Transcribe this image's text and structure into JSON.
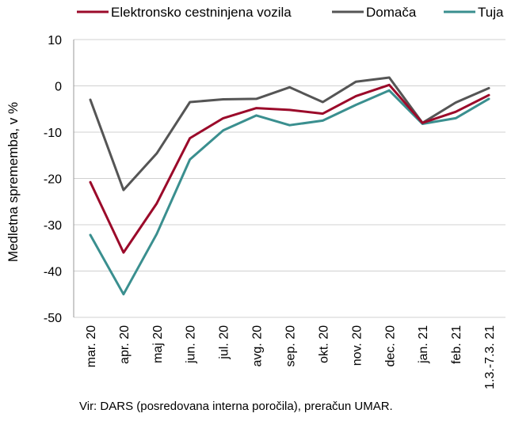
{
  "chart_data": {
    "type": "line",
    "categories": [
      "mar. 20",
      "apr. 20",
      "maj 20",
      "jun. 20",
      "jul. 20",
      "avg. 20",
      "sep. 20",
      "okt. 20",
      "nov. 20",
      "dec. 20",
      "jan. 21",
      "feb. 21",
      "1.3.-7.3. 21"
    ],
    "series": [
      {
        "name": "Elektronsko cestninjena vozila",
        "color": "#9b0a2a",
        "values": [
          -20.8,
          -36.0,
          -25.4,
          -11.3,
          -7.0,
          -4.8,
          -5.2,
          -6.0,
          -2.2,
          0.2,
          -8.0,
          -5.6,
          -2.0
        ]
      },
      {
        "name": "Domača",
        "color": "#555555",
        "values": [
          -3.0,
          -22.5,
          -14.6,
          -3.5,
          -2.9,
          -2.8,
          -0.3,
          -3.5,
          0.9,
          1.8,
          -8.0,
          -3.6,
          -0.5
        ]
      },
      {
        "name": "Tuja",
        "color": "#3a8f8f",
        "values": [
          -32.2,
          -45.0,
          -32.0,
          -15.9,
          -9.6,
          -6.4,
          -8.5,
          -7.5,
          -4.1,
          -1.0,
          -8.2,
          -7.0,
          -2.8
        ]
      }
    ],
    "ylabel": "Medletna sprememba, v %",
    "ylim": [
      -50,
      10
    ],
    "yticks": [
      10,
      0,
      -10,
      -20,
      -30,
      -40,
      -50
    ],
    "grid": true,
    "legend": "top"
  },
  "source": "Vir: DARS (posredovana interna poročila), preračun UMAR."
}
